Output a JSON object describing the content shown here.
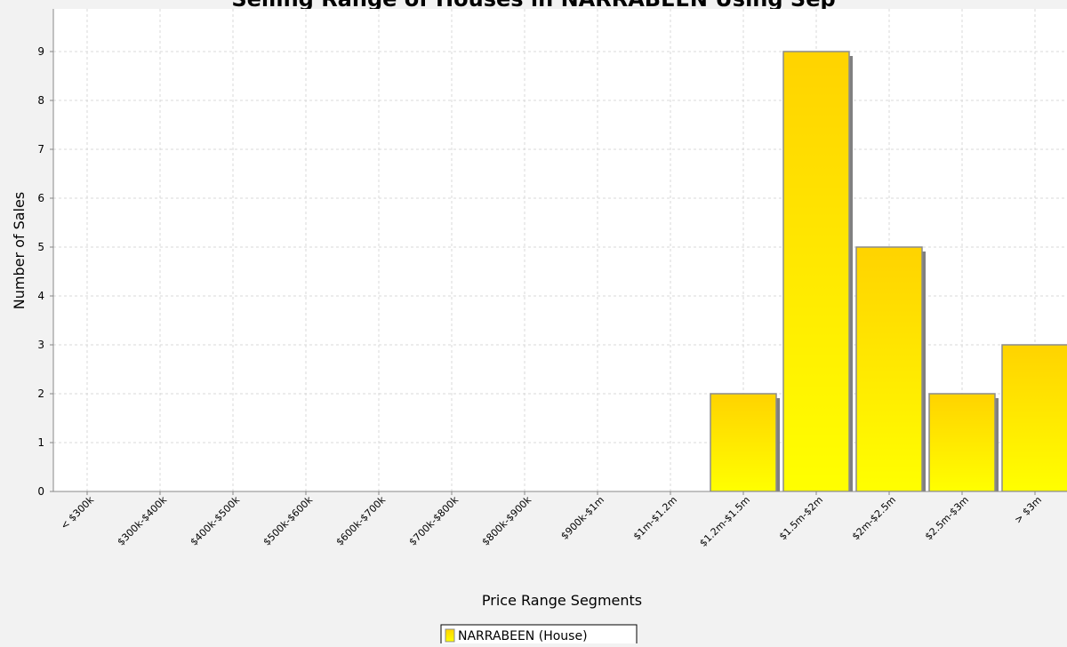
{
  "chart_data": {
    "type": "bar",
    "title": "Selling Range of Houses in NARRABEEN Using Sep",
    "xlabel": "Price Range Segments",
    "ylabel": "Number of Sales",
    "categories": [
      "< $300k",
      "$300k-$400k",
      "$400k-$500k",
      "$500k-$600k",
      "$600k-$700k",
      "$700k-$800k",
      "$800k-$900k",
      "$900k-$1m",
      "$1m-$1.2m",
      "$1.2m-$1.5m",
      "$1.5m-$2m",
      "$2m-$2.5m",
      "$2.5m-$3m",
      "> $3m"
    ],
    "series": [
      {
        "name": "NARRABEEN (House)",
        "values": [
          0,
          0,
          0,
          0,
          0,
          0,
          0,
          0,
          0,
          2,
          9,
          5,
          2,
          3
        ]
      }
    ],
    "ylim": [
      0,
      10
    ],
    "yticks": [
      "0",
      "1",
      "2",
      "3",
      "4",
      "5",
      "6",
      "7",
      "8",
      "9"
    ],
    "grid": true,
    "legend_position": "bottom",
    "colors": {
      "bar_top": "#FFD300",
      "bar_bottom": "#FFFF00",
      "bar_outline": "#8C8C8C",
      "bar_shadow": "#808080",
      "plot_background": "#FFFFFF",
      "page_background": "#F2F2F2",
      "gridline": "#D9D9D9"
    }
  }
}
